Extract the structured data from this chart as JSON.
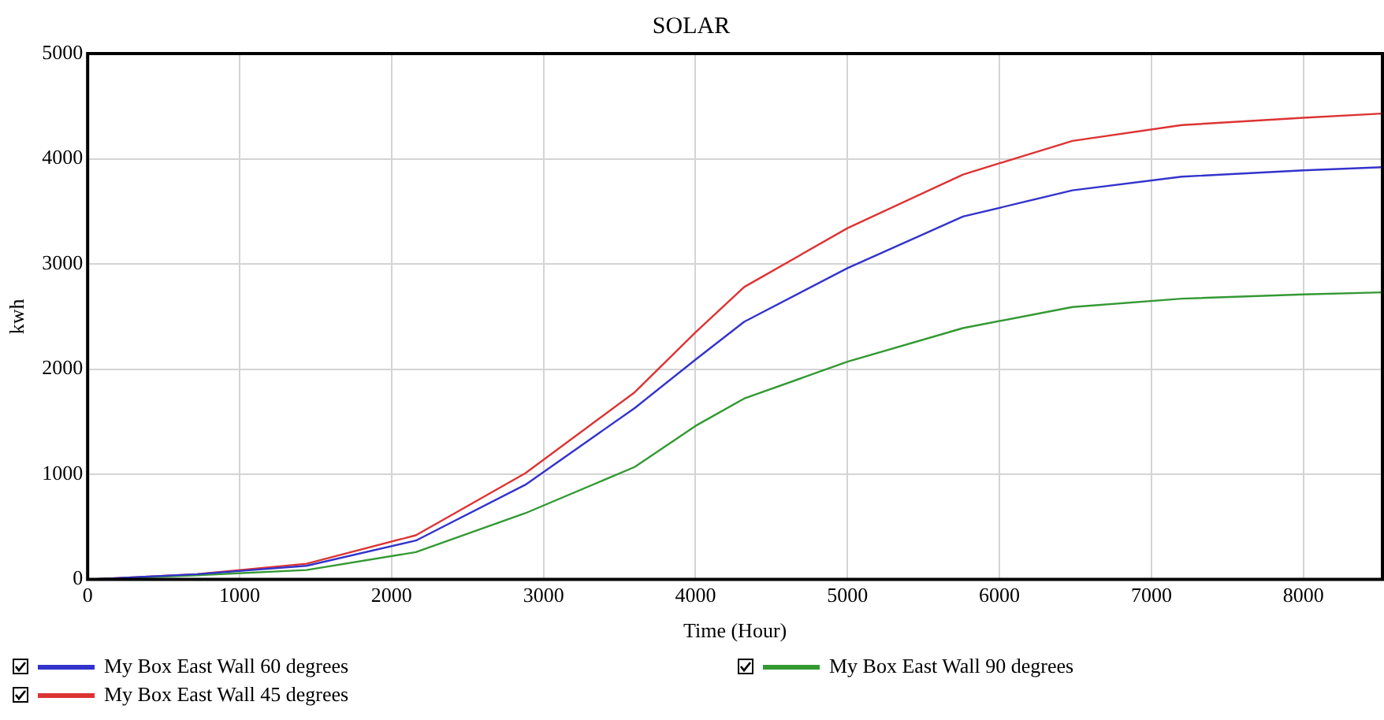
{
  "chart_data": {
    "type": "line",
    "title": "SOLAR",
    "xlabel": "Time (Hour)",
    "ylabel": "kwh",
    "xlim": [
      0,
      8520
    ],
    "xticks": [
      0,
      1000,
      2000,
      3000,
      4000,
      5000,
      6000,
      7000,
      8000
    ],
    "ylim": [
      0,
      5000
    ],
    "yticks": [
      0,
      1000,
      2000,
      3000,
      4000,
      5000
    ],
    "grid": true,
    "legend": "bottom",
    "marker": "none",
    "line_style": "solid",
    "series": [
      {
        "name": "My Box East Wall 60 degrees",
        "color": "#3333cc",
        "x": [
          0,
          720,
          1440,
          2160,
          2880,
          3600,
          4000,
          4320,
          5000,
          5760,
          6480,
          7200,
          8000,
          8520
        ],
        "values": [
          0,
          50,
          130,
          370,
          900,
          1630,
          2090,
          2450,
          2960,
          3450,
          3700,
          3830,
          3890,
          3920
        ]
      },
      {
        "name": "My Box East Wall 90 degrees",
        "color": "#339933",
        "x": [
          0,
          720,
          1440,
          2160,
          2880,
          3600,
          4000,
          4320,
          5000,
          5760,
          6480,
          7200,
          8000,
          8520
        ],
        "values": [
          0,
          40,
          90,
          260,
          630,
          1070,
          1460,
          1720,
          2070,
          2390,
          2590,
          2670,
          2710,
          2730
        ]
      },
      {
        "name": "My Box East Wall 45 degrees",
        "color": "#dd3333",
        "x": [
          0,
          720,
          1440,
          2160,
          2880,
          3600,
          4000,
          4320,
          5000,
          5760,
          6480,
          7200,
          8000,
          8520
        ],
        "values": [
          0,
          50,
          150,
          420,
          1010,
          1780,
          2350,
          2780,
          3340,
          3850,
          4170,
          4320,
          4390,
          4430
        ]
      }
    ]
  }
}
